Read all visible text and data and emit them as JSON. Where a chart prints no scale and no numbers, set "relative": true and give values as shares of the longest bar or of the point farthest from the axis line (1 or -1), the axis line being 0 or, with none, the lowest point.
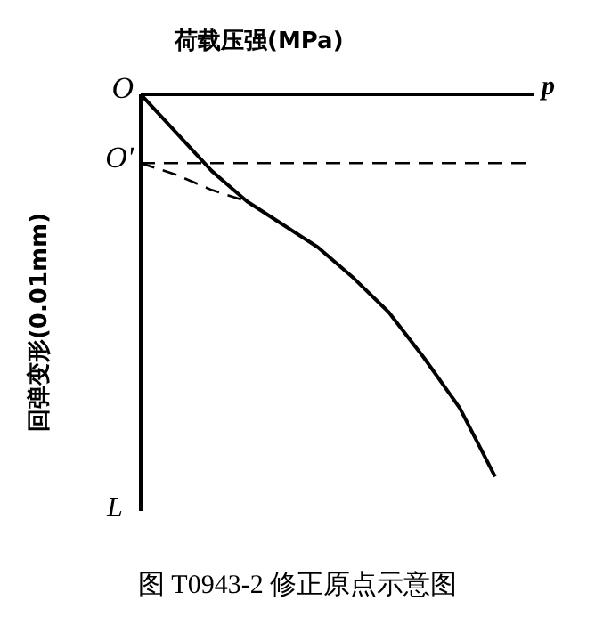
{
  "chart_data": {
    "type": "line",
    "relative": true,
    "xlabel": "荷载压强(MPa)",
    "ylabel": "回弹变形(0.01mm)",
    "categories": [
      null,
      null,
      null,
      null,
      null,
      null,
      null,
      null,
      null,
      null,
      null,
      null
    ],
    "series": [
      {
        "color": "#000000",
        "line_style": "solid",
        "values": [
          0,
          -0.1,
          -0.2,
          -0.28,
          -0.34,
          -0.4,
          -0.48,
          -0.57,
          -0.69,
          -0.82,
          -1,
          null
        ]
      },
      {
        "color": "#000000",
        "line_style": "dashed",
        "values": [
          -0.18,
          -0.21,
          -0.25,
          -0.28,
          null,
          null,
          null,
          null,
          null,
          null,
          null,
          null
        ]
      },
      {
        "color": "#000000",
        "line_style": "dashed",
        "values": [
          -0.18,
          -0.18,
          -0.18,
          -0.18,
          -0.18,
          -0.18,
          -0.18,
          -0.18,
          -0.18,
          -0.18,
          -0.18,
          -0.18
        ]
      }
    ],
    "marker": "none",
    "grid": false,
    "legend": false,
    "annotations": [
      "O",
      "O'",
      "p",
      "L",
      "图 T0943-2  修正原点示意图"
    ]
  }
}
